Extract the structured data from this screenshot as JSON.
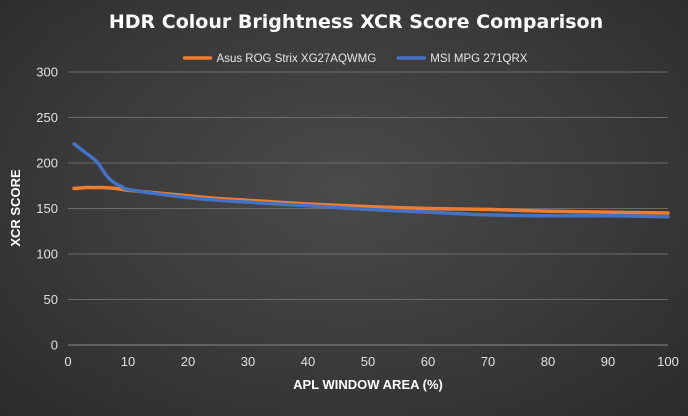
{
  "chart_data": {
    "type": "line",
    "title": "HDR Colour Brightness XCR Score Comparison",
    "xlabel": "APL WINDOW AREA (%)",
    "ylabel": "XCR SCORE",
    "xlim": [
      0,
      100
    ],
    "ylim": [
      0,
      300
    ],
    "x_ticks": [
      0,
      10,
      20,
      30,
      40,
      50,
      60,
      70,
      80,
      90,
      100
    ],
    "y_ticks": [
      0,
      50,
      100,
      150,
      200,
      250,
      300
    ],
    "grid": true,
    "legend_position": "top",
    "series": [
      {
        "name": "Asus ROG Strix XG27AQWMG",
        "color": "#ED7D31",
        "x": [
          1,
          2,
          3,
          4,
          5,
          6,
          7,
          8,
          9,
          10,
          15,
          20,
          25,
          30,
          40,
          50,
          60,
          70,
          80,
          90,
          100
        ],
        "y": [
          172,
          172.5,
          173,
          173,
          173,
          173,
          172.5,
          172,
          171,
          170,
          167,
          164,
          161,
          159,
          155,
          152,
          150,
          149,
          147,
          146,
          145
        ]
      },
      {
        "name": "MSI MPG 271QRX",
        "color": "#4472C4",
        "x": [
          1,
          2,
          3,
          4,
          5,
          6,
          7,
          8,
          9,
          10,
          15,
          20,
          25,
          30,
          40,
          50,
          60,
          70,
          80,
          90,
          100
        ],
        "y": [
          221,
          216,
          211,
          206,
          200,
          190,
          182,
          177,
          174,
          171,
          166,
          162,
          159,
          157,
          153,
          149,
          146,
          143,
          142,
          142,
          141
        ]
      }
    ]
  }
}
